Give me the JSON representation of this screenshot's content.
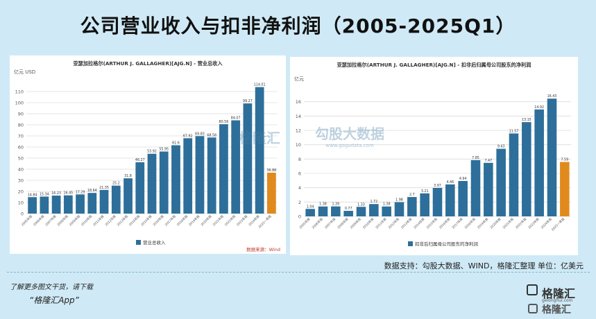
{
  "page": {
    "title": "公司营业收入与扣非净利润（2005-2025Q1）",
    "source_note": "数据支持：勾股大数据、WIND，格隆汇整理 单位：亿美元",
    "promo_line": "了解更多图文干货，请下载",
    "promo_app": "“格隆汇App”",
    "brand_name": "格隆汇",
    "brand_domain": "gelonghui.com",
    "watermark_left": "格隆汇",
    "watermark_right": "勾股大数据",
    "watermark_right_url": "www.gogudata.com"
  },
  "colors": {
    "bar": "#2d6f9a",
    "highlight": "#e08a1e",
    "grid": "#dcdcdc",
    "text": "#333333",
    "source_red": "#c0392b"
  },
  "chart_data": [
    {
      "type": "bar",
      "title": "亚瑟加拉格尔(ARTHUR J. GALLAGHER)[AJG.N] - 营业总收入",
      "ylabel": "亿元  USD",
      "ylim": [
        0,
        120
      ],
      "yticks": [
        0,
        10,
        20,
        30,
        40,
        50,
        60,
        70,
        80,
        90,
        100,
        110
      ],
      "legend": "营业总收入",
      "source": "数据来源：Wind",
      "categories": [
        "2005年报",
        "2006年报",
        "2007年报",
        "2008年报",
        "2009年报",
        "2010年报",
        "2011年报",
        "2012年报",
        "2013年报",
        "2014年报",
        "2015年报",
        "2016年报",
        "2017年报",
        "2018年报",
        "2019年报",
        "2020年报",
        "2021年报",
        "2022年报",
        "2023年报",
        "2024年报",
        "2025一季报"
      ],
      "values": [
        14.84,
        15.34,
        16.23,
        16.45,
        17.29,
        18.64,
        21.35,
        25.2,
        31.8,
        46.27,
        53.92,
        55.95,
        61.6,
        67.92,
        69.83,
        68.58,
        80.56,
        84.07,
        99.27,
        114.01,
        36.88
      ],
      "labels": [
        "14.84",
        "15.34",
        "16.23",
        "16.45",
        "17.29",
        "18.64",
        "21.35",
        "25.2",
        "31.8",
        "46.27",
        "53.92",
        "55.95",
        "61.6",
        "67.92",
        "69.83",
        "68.58",
        "80.56",
        "84.07",
        "99.27",
        "114.01",
        "36.88"
      ],
      "highlight_last": true
    },
    {
      "type": "bar",
      "title": "亚瑟加拉格尔(ARTHUR J. GALLAGHER)[AJG.N] - 扣非后归属母公司股东的净利润",
      "ylabel": "亿元",
      "ylim": [
        0,
        18
      ],
      "yticks": [
        0,
        2,
        4,
        6,
        8,
        10,
        12,
        14,
        16
      ],
      "legend": "扣非后归属母公司股东的净利润",
      "source": "",
      "categories": [
        "2005年报",
        "2006年报",
        "2007年报",
        "2008年报",
        "2009年报",
        "2010年报",
        "2011年报",
        "2012年报",
        "2013年报",
        "2014年报",
        "2015年报",
        "2016年报",
        "2017年报",
        "2018年报",
        "2019年报",
        "2020年报",
        "2021年报",
        "2022年报",
        "2023年报",
        "2024年报",
        "2025一季报"
      ],
      "values": [
        1.04,
        1.38,
        1.39,
        0.77,
        1.33,
        1.72,
        1.38,
        1.98,
        2.7,
        3.21,
        3.97,
        4.46,
        4.94,
        7.85,
        7.47,
        9.43,
        11.57,
        13.15,
        14.92,
        16.43,
        7.59
      ],
      "labels": [
        "1.04",
        "1.38",
        "1.39",
        "0.77",
        "1.33",
        "1.72",
        "1.38",
        "1.98",
        "2.7",
        "3.21",
        "3.97",
        "4.46",
        "4.94",
        "7.85",
        "7.47",
        "9.43",
        "11.57",
        "13.15",
        "14.92",
        "16.43",
        "7.59"
      ],
      "highlight_last": true
    }
  ]
}
